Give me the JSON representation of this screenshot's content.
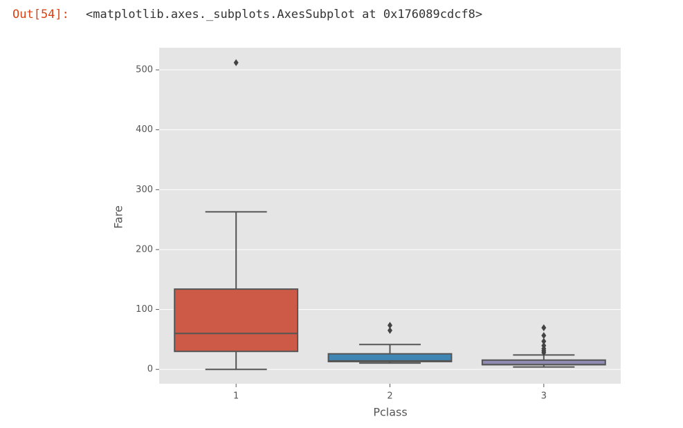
{
  "prompt": "Out[54]:",
  "output": "<matplotlib.axes._subplots.AxesSubplot at 0x176089cdcf8>",
  "chart_data": {
    "type": "box",
    "xlabel": "Pclass",
    "ylabel": "Fare",
    "categories": [
      "1",
      "2",
      "3"
    ],
    "colors": [
      "#cc5a46",
      "#3f86b5",
      "#8f8bb3"
    ],
    "boxes": [
      {
        "whislo": 0,
        "q1": 30,
        "med": 60,
        "q3": 134,
        "whishi": 263,
        "fliers": [
          512
        ]
      },
      {
        "whislo": 10.5,
        "q1": 13,
        "med": 14.25,
        "q3": 26,
        "whishi": 41.5,
        "fliers": [
          65,
          73.5
        ]
      },
      {
        "whislo": 4,
        "q1": 7.75,
        "med": 8.05,
        "q3": 15.5,
        "whishi": 24,
        "fliers": [
          27.9,
          31,
          34.4,
          39.7,
          46.9,
          56.5,
          69.55
        ]
      }
    ],
    "ylim": [
      -24,
      537
    ],
    "yticks": [
      0,
      100,
      200,
      300,
      400,
      500
    ],
    "grid": true
  }
}
